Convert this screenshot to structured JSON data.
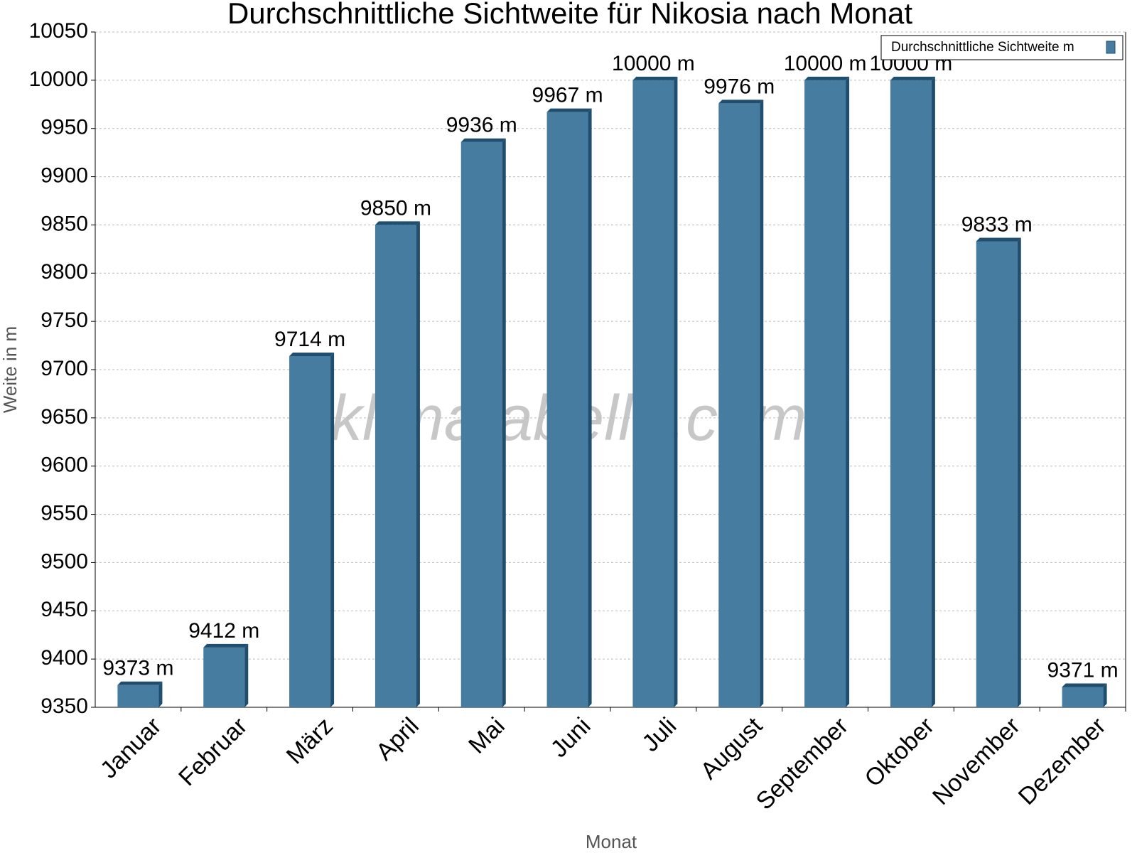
{
  "chart_data": {
    "type": "bar",
    "title": "Durchschnittliche Sichtweite für Nikosia nach Monat",
    "x_label": "Monat",
    "y_label": "Weite in m",
    "watermark": "klimatabelle.com",
    "categories": [
      "Januar",
      "Februar",
      "März",
      "April",
      "Mai",
      "Juni",
      "Juli",
      "August",
      "September",
      "Oktober",
      "November",
      "Dezember"
    ],
    "series": [
      {
        "name": "Durchschnittliche Sichtweite m",
        "color": "#467ca0",
        "values": [
          9373,
          9412,
          9714,
          9850,
          9936,
          9967,
          10000,
          9976,
          10000,
          10000,
          9833,
          9371
        ],
        "value_labels": [
          "9373 m",
          "9412 m",
          "9714 m",
          "9850 m",
          "9936 m",
          "9967 m",
          "10000 m",
          "9976 m",
          "10000 m",
          "10000 m",
          "9833 m",
          "9371 m"
        ]
      }
    ],
    "ylim": [
      9350,
      10050
    ],
    "yticks": [
      9350,
      9400,
      9450,
      9500,
      9550,
      9600,
      9650,
      9700,
      9750,
      9800,
      9850,
      9900,
      9950,
      10000,
      10050
    ],
    "grid": true,
    "legend": "top-right"
  }
}
